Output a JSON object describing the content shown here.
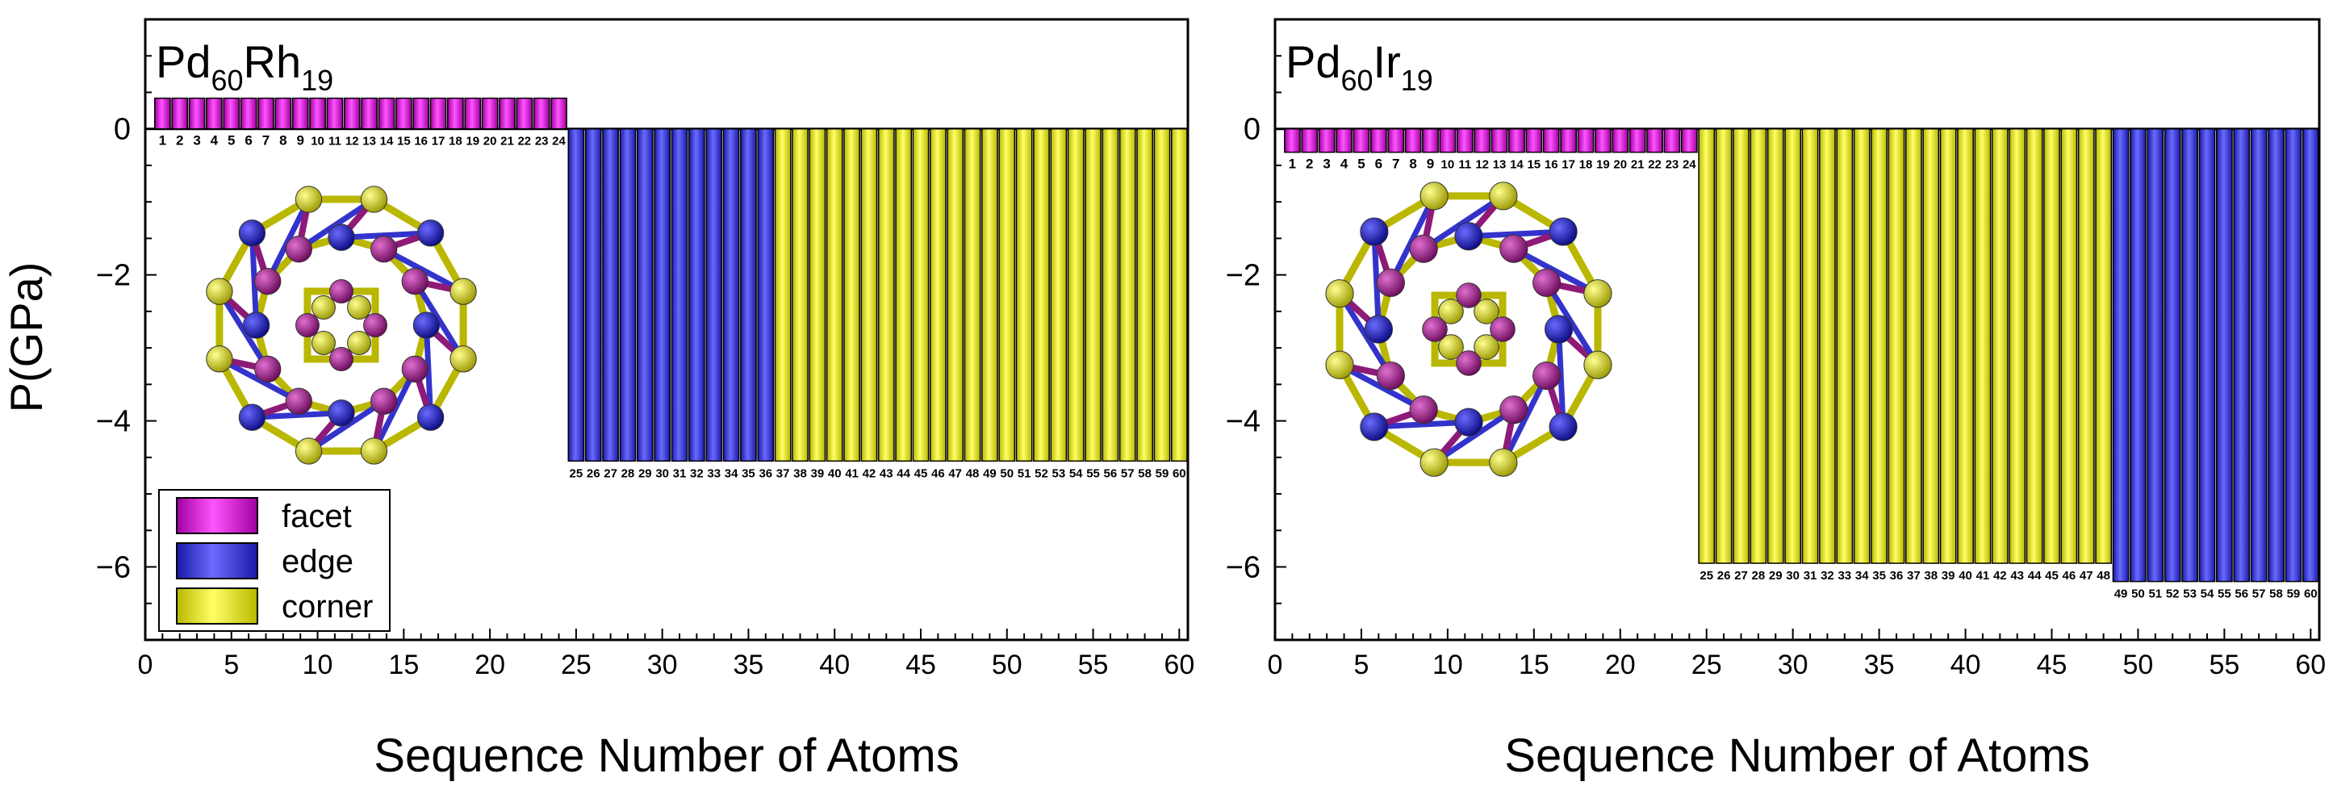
{
  "shared": {
    "ylabel": "P(GPa)",
    "xlabel": "Sequence Number of Atoms",
    "legend": [
      {
        "label": "facet",
        "color": "#ff00ff"
      },
      {
        "label": "edge",
        "color": "#3333ee"
      },
      {
        "label": "corner",
        "color": "#ffff00"
      }
    ],
    "atom_colors": {
      "facet": "#8e1a78",
      "edge": "#1a1acc",
      "corner": "#e2e000"
    },
    "ylim": [
      -7,
      1.5
    ],
    "xlim": [
      0,
      60.5
    ],
    "yticks": [
      0,
      -2,
      -4,
      -6
    ],
    "xticks": [
      0,
      5,
      10,
      15,
      20,
      25,
      30,
      35,
      40,
      45,
      50,
      55,
      60
    ]
  },
  "chart_data": [
    {
      "type": "bar",
      "label_base": "Pd",
      "label_base_sub": "60",
      "label_dopant": "Rh",
      "label_dopant_sub": "19",
      "groups": [
        {
          "kind": "facet",
          "start": 1,
          "end": 24,
          "value": 0.42
        },
        {
          "kind": "edge",
          "start": 25,
          "end": 36,
          "value": -4.55
        },
        {
          "kind": "corner",
          "start": 37,
          "end": 60,
          "value": -4.55
        }
      ]
    },
    {
      "type": "bar",
      "label_base": "Pd",
      "label_base_sub": "60",
      "label_dopant": "Ir",
      "label_dopant_sub": "19",
      "groups": [
        {
          "kind": "facet",
          "start": 1,
          "end": 24,
          "value": -0.32
        },
        {
          "kind": "corner",
          "start": 25,
          "end": 48,
          "value": -5.95
        },
        {
          "kind": "edge",
          "start": 49,
          "end": 60,
          "value": -6.2
        }
      ]
    }
  ]
}
